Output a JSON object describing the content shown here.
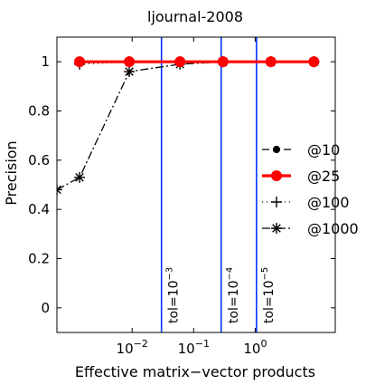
{
  "chart_data": {
    "type": "line",
    "title": "ljournal-2008",
    "xlabel": "Effective matrix−vector products",
    "ylabel": "Precision",
    "xscale": "log",
    "xlim": [
      0.0006,
      20
    ],
    "ylim": [
      -0.1,
      1.1
    ],
    "yticks": [
      {
        "value": 0,
        "label": "0"
      },
      {
        "value": 0.2,
        "label": "0.2"
      },
      {
        "value": 0.4,
        "label": "0.4"
      },
      {
        "value": 0.6,
        "label": "0.6"
      },
      {
        "value": 0.8,
        "label": "0.8"
      },
      {
        "value": 1,
        "label": "1"
      }
    ],
    "xticks": [
      {
        "value": 0.01,
        "base": "10",
        "exp": "−2"
      },
      {
        "value": 0.1,
        "base": "10",
        "exp": "−1"
      },
      {
        "value": 1,
        "base": "10",
        "exp": "0"
      }
    ],
    "grid": false,
    "legend_position": "right",
    "series": [
      {
        "name": "@10",
        "color": "#000000",
        "marker": "dot",
        "dash": "8,4",
        "x": [
          0.0014,
          0.009,
          0.06,
          0.3,
          1.8,
          9
        ],
        "y": [
          1.0,
          1.0,
          1.0,
          1.0,
          1.0,
          1.0
        ]
      },
      {
        "name": "@25",
        "color": "#ff0000",
        "marker": "dot",
        "dash": "",
        "x": [
          0.0014,
          0.009,
          0.06,
          0.3,
          1.8,
          9
        ],
        "y": [
          1.0,
          1.0,
          1.0,
          1.0,
          1.0,
          1.0
        ]
      },
      {
        "name": "@100",
        "color": "#000000",
        "marker": "plus",
        "dash": "1,4",
        "x": [
          0.0014,
          0.009,
          0.06,
          0.3,
          1.8,
          9
        ],
        "y": [
          0.99,
          1.0,
          1.0,
          1.0,
          1.0,
          1.0
        ]
      },
      {
        "name": "@1000",
        "color": "#000000",
        "marker": "asterisk",
        "dash": "9,3,2,3",
        "x": [
          0.0006,
          0.0014,
          0.009,
          0.06,
          0.3,
          1.8,
          9
        ],
        "y": [
          0.48,
          0.53,
          0.96,
          0.99,
          1.0,
          1.0,
          1.0
        ]
      }
    ],
    "vlines": [
      {
        "x": 0.03,
        "base": "tol=10",
        "exp": "−3",
        "color": "#0033ff"
      },
      {
        "x": 0.28,
        "base": "tol=10",
        "exp": "−4",
        "color": "#0033ff"
      },
      {
        "x": 1.05,
        "base": "tol=10",
        "exp": "−5",
        "color": "#0033ff"
      }
    ]
  }
}
